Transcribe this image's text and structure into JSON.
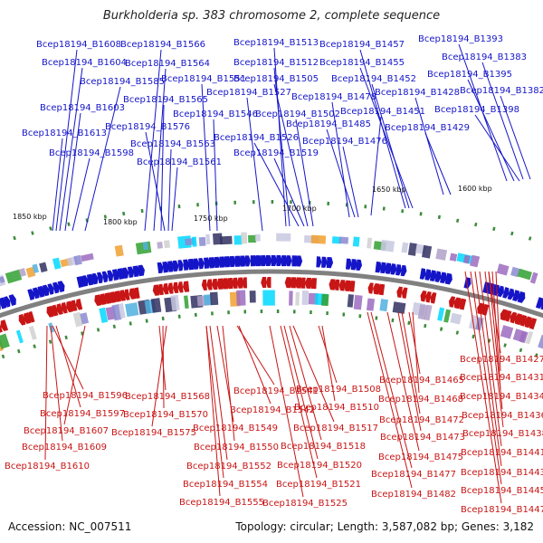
{
  "title": "Burkholderia sp. 383 chromosome 2, complete sequence",
  "footer": {
    "accession": "Accession: NC_007511",
    "topology": "Topology: circular; Length: 3,587,082 bp; Genes: 3,182"
  },
  "scale_marks": [
    "1850 kbp",
    "1800 kbp",
    "1750 kbp",
    "1700 kbp",
    "1650 kbp",
    "1600 kbp"
  ],
  "forward_labels": [
    "Bcep18194_B1608",
    "Bcep18194_B1604",
    "Bcep18194_B1585",
    "Bcep18194_B1603",
    "Bcep18194_B1613",
    "Bcep18194_B1598",
    "Bcep18194_B1566",
    "Bcep18194_B1564",
    "Bcep18194_B1565",
    "Bcep18194_B1576",
    "Bcep18194_B1563",
    "Bcep18194_B1561",
    "Bcep18194_B1551",
    "Bcep18194_B1546",
    "Bcep18194_B1527",
    "Bcep18194_B1513",
    "Bcep18194_B1512",
    "Bcep18194_B1505",
    "Bcep18194_B1502",
    "Bcep18194_B1526",
    "Bcep18194_B1519",
    "Bcep18194_B1457",
    "Bcep18194_B1455",
    "Bcep18194_B1452",
    "Bcep18194_B1478",
    "Bcep18194_B1485",
    "Bcep18194_B1476",
    "Bcep18194_B1451",
    "Bcep18194_B1428",
    "Bcep18194_B1429",
    "Bcep18194_B1393",
    "Bcep18194_B1383",
    "Bcep18194_B1395",
    "Bcep18194_B1382",
    "Bcep18194_B1398"
  ],
  "reverse_labels": [
    "Bcep18194_B1596",
    "Bcep18194_B1597",
    "Bcep18194_B1607",
    "Bcep18194_B1609",
    "Bcep18194_B1610",
    "Bcep18194_B1568",
    "Bcep18194_B1570",
    "Bcep18194_B1575",
    "Bcep18194_B1541",
    "Bcep18194_B1542",
    "Bcep18194_B1549",
    "Bcep18194_B1550",
    "Bcep18194_B1552",
    "Bcep18194_B1554",
    "Bcep18194_B1555",
    "Bcep18194_B1508",
    "Bcep18194_B1510",
    "Bcep18194_B1517",
    "Bcep18194_B1518",
    "Bcep18194_B1520",
    "Bcep18194_B1521",
    "Bcep18194_B1525",
    "Bcep18194_B1465",
    "Bcep18194_B1468",
    "Bcep18194_B1472",
    "Bcep18194_B1473",
    "Bcep18194_B1475",
    "Bcep18194_B1477",
    "Bcep18194_B1482",
    "Bcep18194_B1427",
    "Bcep18194_B1431",
    "Bcep18194_B1434",
    "Bcep18194_B1436",
    "Bcep18194_B1438",
    "Bcep18194_B1441",
    "Bcep18194_B1443",
    "Bcep18194_B1445",
    "Bcep18194_B1447"
  ],
  "colors": {
    "forward": "#1515c8",
    "reverse": "#c81515",
    "backbone": "#808080"
  }
}
